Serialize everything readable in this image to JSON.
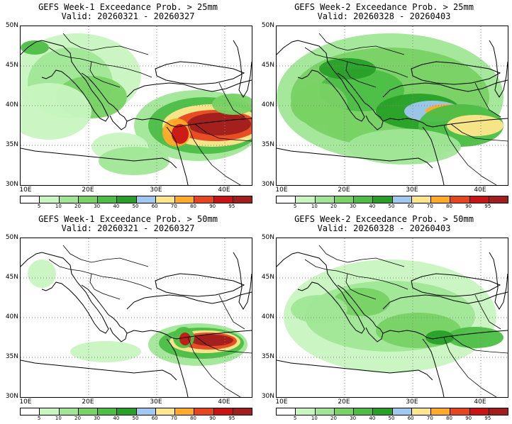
{
  "colorbar": {
    "labels": [
      "5",
      "10",
      "20",
      "30",
      "40",
      "50",
      "60",
      "70",
      "80",
      "90",
      "95"
    ],
    "colors": [
      "#ffffff",
      "#c8f5c0",
      "#a0e696",
      "#78d264",
      "#4cbe46",
      "#28a028",
      "#a0c8f0",
      "#ffe68c",
      "#ffaa28",
      "#e6461e",
      "#c81414",
      "#a01e1e"
    ]
  },
  "axes": {
    "y_labels": [
      "50N",
      "45N",
      "40N",
      "35N",
      "30N"
    ],
    "x_labels": [
      "10E",
      "20E",
      "30E",
      "40E"
    ]
  },
  "panels": [
    {
      "title": "GEFS Week-1 Exceedance Prob. > 25mm",
      "valid": "Valid: 20260321 - 20260327"
    },
    {
      "title": "GEFS Week-2 Exceedance Prob. > 25mm",
      "valid": "Valid: 20260328 - 20260403"
    },
    {
      "title": "GEFS Week-1 Exceedance Prob. > 50mm",
      "valid": "Valid: 20260321 - 20260327"
    },
    {
      "title": "GEFS Week-2 Exceedance Prob. > 50mm",
      "valid": "Valid: 20260328 - 20260403"
    }
  ]
}
